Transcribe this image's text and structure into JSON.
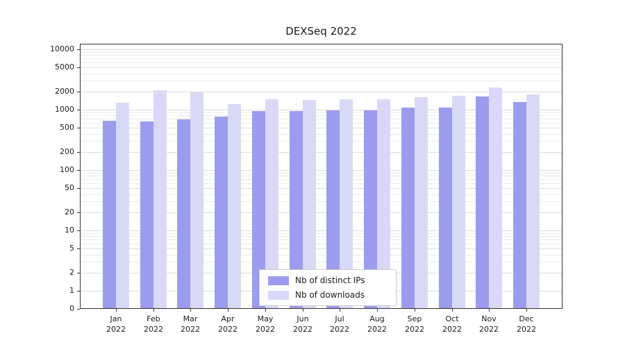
{
  "title": "DEXSeq 2022",
  "chart_data": {
    "type": "bar",
    "title": "DEXSeq 2022",
    "categories": [
      {
        "month": "Jan",
        "year": "2022"
      },
      {
        "month": "Feb",
        "year": "2022"
      },
      {
        "month": "Mar",
        "year": "2022"
      },
      {
        "month": "Apr",
        "year": "2022"
      },
      {
        "month": "May",
        "year": "2022"
      },
      {
        "month": "Jun",
        "year": "2022"
      },
      {
        "month": "Jul",
        "year": "2022"
      },
      {
        "month": "Aug",
        "year": "2022"
      },
      {
        "month": "Sep",
        "year": "2022"
      },
      {
        "month": "Oct",
        "year": "2022"
      },
      {
        "month": "Nov",
        "year": "2022"
      },
      {
        "month": "Dec",
        "year": "2022"
      }
    ],
    "series": [
      {
        "name": "Nb of distinct IPs",
        "color": "#9c9cee",
        "values": [
          650,
          640,
          690,
          760,
          950,
          950,
          980,
          980,
          1080,
          1080,
          1650,
          1350
        ]
      },
      {
        "name": "Nb of downloads",
        "color": "#d9d9f7",
        "values": [
          1300,
          2100,
          1950,
          1250,
          1500,
          1450,
          1500,
          1500,
          1600,
          1700,
          2350,
          1800
        ]
      }
    ],
    "yscale": "symlog",
    "ylim": [
      0,
      10000
    ],
    "yticks": [
      10000,
      5000,
      2000,
      1000,
      500,
      200,
      100,
      50,
      20,
      10,
      5,
      2,
      1,
      0
    ],
    "grid": true,
    "legend_position": "lower center",
    "grid_color_major": "#dcdcdc",
    "grid_color_minor": "#ececec"
  }
}
